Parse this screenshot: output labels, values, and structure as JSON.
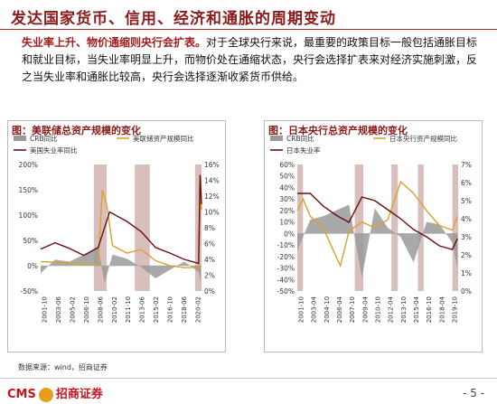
{
  "title": "发达国家货币、信用、经济和通胀的周期变动",
  "paragraph": {
    "lead": "失业率上升、物价通缩则央行会扩表。",
    "body": "对于全球央行来说，最重要的政策目标一般包括通胀目标和就业目标，当失业率明显上升，而物价处在通缩状态，央行会选择扩表来对经济实施刺激，反之当失业率和通胀比较高，央行会选择逐渐收紧货币供给。"
  },
  "colors": {
    "cpi": "#9a9a9a",
    "balance": "#d8a32a",
    "unemployment": "#6b0f0f",
    "shade": "#c9a3a3",
    "accent": "#8b1a1a"
  },
  "charts": [
    {
      "title": "图：美联储总资产规模的变化",
      "legend": [
        "CRB同比",
        "美联储资产规模同比",
        "美国失业率同比"
      ],
      "left_ticks": [
        "200%",
        "150%",
        "100%",
        "50%",
        "0%",
        "-50%"
      ],
      "right_ticks": [
        "16%",
        "14%",
        "12%",
        "10%",
        "8%",
        "6%",
        "4%",
        "2%",
        "0%"
      ],
      "x_ticks": [
        "2001-10",
        "2003-06",
        "2005-02",
        "2006-10",
        "2008-06",
        "2010-02",
        "2011-10",
        "2013-06",
        "2015-02",
        "2016-10",
        "2018-06",
        "2020-02"
      ]
    },
    {
      "title": "图：日本央行总资产规模的变化",
      "legend": [
        "CRB同比",
        "日本央行资产规模同比",
        "日本失业率"
      ],
      "left_ticks": [
        "60%",
        "50%",
        "40%",
        "30%",
        "20%",
        "10%",
        "0%",
        "-10%",
        "-20%",
        "-30%",
        "-40%",
        "-50%"
      ],
      "right_ticks": [
        "7%",
        "6%",
        "5%",
        "4%",
        "3%",
        "2%",
        "1%",
        "0%"
      ],
      "x_ticks": [
        "2001-10",
        "2003-04",
        "2004-10",
        "2006-04",
        "2007-10",
        "2009-04",
        "2010-10",
        "2012-04",
        "2013-10",
        "2015-04",
        "2016-10",
        "2018-04",
        "2019-10"
      ]
    }
  ],
  "chart_data": [
    {
      "type": "line",
      "title": "图：美联储总资产规模的变化",
      "x_range": [
        "2001-10",
        "2020-06"
      ],
      "left_axis": {
        "ylim": [
          -50,
          200
        ],
        "unit": "%"
      },
      "right_axis": {
        "ylim": [
          0,
          16
        ],
        "unit": "%"
      },
      "shaded_periods": [
        [
          "2007-12",
          "2009-06"
        ],
        [
          "2012-09",
          "2014-06"
        ],
        [
          "2019-09",
          "2020-06"
        ]
      ],
      "series": [
        {
          "name": "CRB同比",
          "axis": "left",
          "style": "area",
          "x": [
            "2001-10",
            "2003-06",
            "2005-02",
            "2006-10",
            "2008-06",
            "2009-03",
            "2010-02",
            "2011-10",
            "2013-06",
            "2015-02",
            "2016-10",
            "2018-06",
            "2020-02",
            "2020-05"
          ],
          "values": [
            -15,
            12,
            8,
            22,
            38,
            -35,
            22,
            14,
            -3,
            -25,
            -8,
            8,
            -12,
            -35
          ]
        },
        {
          "name": "美联储资产规模同比",
          "axis": "left",
          "style": "line",
          "x": [
            "2001-10",
            "2003-06",
            "2005-02",
            "2006-10",
            "2008-06",
            "2008-12",
            "2009-06",
            "2010-02",
            "2011-10",
            "2013-06",
            "2015-02",
            "2016-10",
            "2018-06",
            "2020-02",
            "2020-05",
            "2020-06"
          ],
          "values": [
            8,
            7,
            5,
            4,
            3,
            150,
            120,
            40,
            25,
            32,
            10,
            0,
            -4,
            -3,
            170,
            110
          ]
        },
        {
          "name": "美国失业率同比",
          "axis": "right",
          "style": "line",
          "x": [
            "2001-10",
            "2003-06",
            "2005-02",
            "2006-10",
            "2008-06",
            "2009-10",
            "2011-10",
            "2013-06",
            "2015-02",
            "2016-10",
            "2018-06",
            "2020-02",
            "2020-04",
            "2020-06"
          ],
          "values": [
            5.3,
            6.1,
            5.4,
            4.5,
            5.5,
            10,
            8.8,
            7.5,
            5.5,
            4.8,
            4.0,
            3.5,
            14.7,
            11
          ]
        }
      ]
    },
    {
      "type": "line",
      "title": "图：日本央行总资产规模的变化",
      "x_range": [
        "2001-10",
        "2020-06"
      ],
      "left_axis": {
        "ylim": [
          -50,
          60
        ],
        "unit": "%"
      },
      "right_axis": {
        "ylim": [
          0,
          7
        ],
        "unit": "%"
      },
      "shaded_periods": [
        [
          "2001-10",
          "2002-06"
        ],
        [
          "2008-06",
          "2009-06"
        ],
        [
          "2012-09",
          "2013-06"
        ],
        [
          "2015-10",
          "2016-06"
        ],
        [
          "2019-10",
          "2020-06"
        ]
      ],
      "series": [
        {
          "name": "CRB同比",
          "axis": "left",
          "style": "area",
          "x": [
            "2001-10",
            "2003-04",
            "2004-10",
            "2006-04",
            "2007-10",
            "2009-04",
            "2010-10",
            "2012-04",
            "2013-10",
            "2015-04",
            "2016-10",
            "2018-04",
            "2019-10",
            "2020-05"
          ],
          "values": [
            -15,
            12,
            15,
            20,
            25,
            -38,
            22,
            5,
            -3,
            -25,
            10,
            8,
            -8,
            -30
          ]
        },
        {
          "name": "日本央行资产规模同比",
          "axis": "left",
          "style": "line",
          "x": [
            "2001-10",
            "2002-06",
            "2003-04",
            "2004-10",
            "2006-04",
            "2006-10",
            "2007-10",
            "2009-04",
            "2010-10",
            "2012-04",
            "2013-10",
            "2015-04",
            "2016-10",
            "2018-04",
            "2019-10",
            "2020-05"
          ],
          "values": [
            20,
            30,
            15,
            5,
            -20,
            -28,
            2,
            10,
            5,
            12,
            45,
            35,
            20,
            7,
            3,
            15
          ]
        },
        {
          "name": "日本失业率",
          "axis": "right",
          "style": "line",
          "x": [
            "2001-10",
            "2003-04",
            "2004-10",
            "2006-04",
            "2007-10",
            "2009-04",
            "2010-10",
            "2012-04",
            "2013-10",
            "2015-04",
            "2016-10",
            "2018-04",
            "2019-10",
            "2020-05"
          ],
          "values": [
            5.4,
            5.4,
            4.7,
            4.2,
            3.8,
            5.2,
            5.0,
            4.5,
            4.0,
            3.4,
            3.0,
            2.5,
            2.3,
            2.9
          ]
        }
      ]
    }
  ],
  "footer": {
    "source": "数据来源：wind，招商证券",
    "logo_text": "CMS",
    "logo_cn": "招商证券",
    "page": "- 5 -"
  }
}
